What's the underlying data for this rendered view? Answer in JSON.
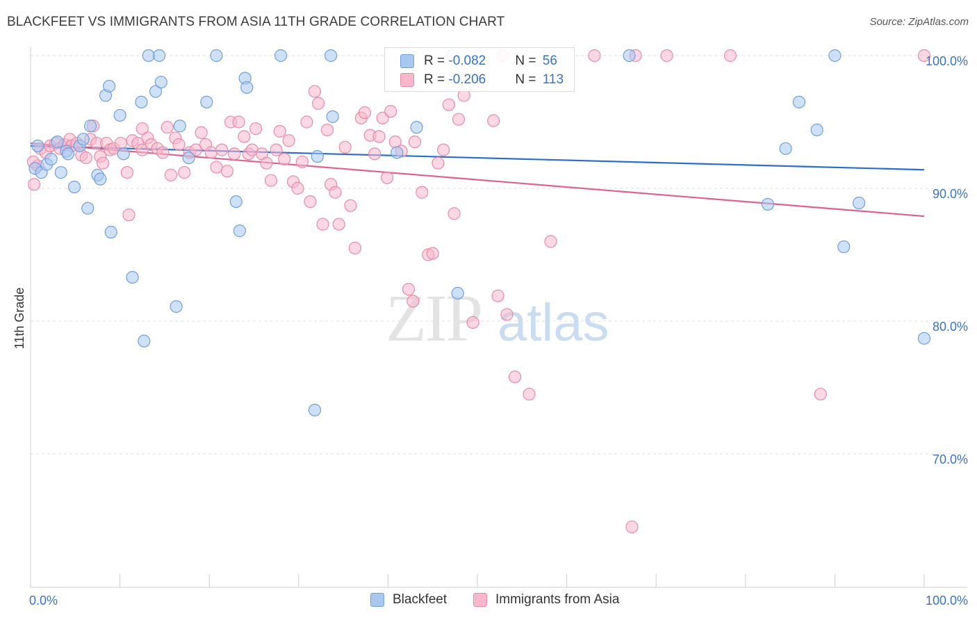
{
  "header": {
    "title": "BLACKFEET VS IMMIGRANTS FROM ASIA 11TH GRADE CORRELATION CHART",
    "source": "Source: ZipAtlas.com"
  },
  "watermark": {
    "zip": "ZIP",
    "atlas": "atlas"
  },
  "legend": {
    "blackfeet": {
      "r_label": "R = ",
      "r_value": "-0.082",
      "n_label": "N = ",
      "n_value": "56"
    },
    "asia": {
      "r_label": "R = ",
      "r_value": "-0.206",
      "n_label": "N = ",
      "n_value": "113"
    }
  },
  "colors": {
    "blackfeet_fill": "#a8c8f0",
    "blackfeet_stroke": "#6f9fdc",
    "blackfeet_line": "#2a6fcc",
    "asia_fill": "#f7b8cc",
    "asia_stroke": "#e88aa8",
    "asia_line": "#e0608e",
    "axis_label": "#3a72c8",
    "grid": "#dddddd"
  },
  "chart_data": {
    "type": "scatter",
    "title": "BLACKFEET VS IMMIGRANTS FROM ASIA 11TH GRADE CORRELATION CHART",
    "ylabel": "11th Grade",
    "xlabel": "",
    "xlim": [
      0,
      100
    ],
    "ylim": [
      62,
      100.5
    ],
    "x_tick_labels": [
      "0.0%",
      "100.0%"
    ],
    "y_tick_labels": [
      "100.0%",
      "90.0%",
      "80.0%",
      "70.0%"
    ],
    "y_tick_values": [
      100,
      90,
      80,
      70
    ],
    "grid": "horizontal-dashed",
    "series": [
      {
        "name": "Blackfeet",
        "trend": [
          [
            0,
            93.2
          ],
          [
            100,
            91.4
          ]
        ],
        "points": [
          [
            0.5,
            91.5
          ],
          [
            0.8,
            93.2
          ],
          [
            1.2,
            91.2
          ],
          [
            1.8,
            91.8
          ],
          [
            2.3,
            92.2
          ],
          [
            3.0,
            93.5
          ],
          [
            3.4,
            91.2
          ],
          [
            4.0,
            92.8
          ],
          [
            4.2,
            92.6
          ],
          [
            4.9,
            90.1
          ],
          [
            5.5,
            93.2
          ],
          [
            5.9,
            93.7
          ],
          [
            6.4,
            88.5
          ],
          [
            6.7,
            94.7
          ],
          [
            7.5,
            91.0
          ],
          [
            7.8,
            90.7
          ],
          [
            8.4,
            97.0
          ],
          [
            8.8,
            97.7
          ],
          [
            9.0,
            86.7
          ],
          [
            10.0,
            95.5
          ],
          [
            10.4,
            92.6
          ],
          [
            11.4,
            83.3
          ],
          [
            12.4,
            96.5
          ],
          [
            12.7,
            78.5
          ],
          [
            13.2,
            100.0
          ],
          [
            14.0,
            97.3
          ],
          [
            14.4,
            100.0
          ],
          [
            14.6,
            98.0
          ],
          [
            16.3,
            81.1
          ],
          [
            16.7,
            94.7
          ],
          [
            17.7,
            92.3
          ],
          [
            19.7,
            96.5
          ],
          [
            20.8,
            100.0
          ],
          [
            23.0,
            89.0
          ],
          [
            23.4,
            86.8
          ],
          [
            24.0,
            98.3
          ],
          [
            24.2,
            97.6
          ],
          [
            28.0,
            100.0
          ],
          [
            31.8,
            73.3
          ],
          [
            32.1,
            92.4
          ],
          [
            33.6,
            100.0
          ],
          [
            33.8,
            95.4
          ],
          [
            41.0,
            92.7
          ],
          [
            43.2,
            94.6
          ],
          [
            47.2,
            100.0
          ],
          [
            47.8,
            82.1
          ],
          [
            50.0,
            100.0
          ],
          [
            82.5,
            88.8
          ],
          [
            84.5,
            93.0
          ],
          [
            86.0,
            96.5
          ],
          [
            88.0,
            94.4
          ],
          [
            90.0,
            100.0
          ],
          [
            91.0,
            85.6
          ],
          [
            92.7,
            88.9
          ],
          [
            100.0,
            78.7
          ],
          [
            67.0,
            100.0
          ]
        ]
      },
      {
        "name": "Immigrants from Asia",
        "trend": [
          [
            0,
            93.4
          ],
          [
            100,
            87.9
          ]
        ],
        "points": [
          [
            0.4,
            90.3
          ],
          [
            0.8,
            91.7
          ],
          [
            1.1,
            93.0
          ],
          [
            1.7,
            92.7
          ],
          [
            2.2,
            93.2
          ],
          [
            2.8,
            93.4
          ],
          [
            3.3,
            93.0
          ],
          [
            3.8,
            93.3
          ],
          [
            4.4,
            93.7
          ],
          [
            4.6,
            93.2
          ],
          [
            5.2,
            93.4
          ],
          [
            5.7,
            92.5
          ],
          [
            6.2,
            92.3
          ],
          [
            6.7,
            93.7
          ],
          [
            7.0,
            94.7
          ],
          [
            7.4,
            93.4
          ],
          [
            7.8,
            92.4
          ],
          [
            8.1,
            91.9
          ],
          [
            8.5,
            93.4
          ],
          [
            8.9,
            92.9
          ],
          [
            9.3,
            93.0
          ],
          [
            10.1,
            93.4
          ],
          [
            10.8,
            91.2
          ],
          [
            11.0,
            88.0
          ],
          [
            11.4,
            93.6
          ],
          [
            12.0,
            93.4
          ],
          [
            12.5,
            92.9
          ],
          [
            13.1,
            93.8
          ],
          [
            13.5,
            93.3
          ],
          [
            14.2,
            93.0
          ],
          [
            14.8,
            92.7
          ],
          [
            15.3,
            94.6
          ],
          [
            15.7,
            91.0
          ],
          [
            16.2,
            93.8
          ],
          [
            16.6,
            93.3
          ],
          [
            17.2,
            91.2
          ],
          [
            17.8,
            92.7
          ],
          [
            18.5,
            92.9
          ],
          [
            19.1,
            94.2
          ],
          [
            19.6,
            93.3
          ],
          [
            20.2,
            92.7
          ],
          [
            20.8,
            91.6
          ],
          [
            21.4,
            92.9
          ],
          [
            22.0,
            91.3
          ],
          [
            22.4,
            95.0
          ],
          [
            22.8,
            92.6
          ],
          [
            23.3,
            95.0
          ],
          [
            23.9,
            93.9
          ],
          [
            24.4,
            92.6
          ],
          [
            24.8,
            92.9
          ],
          [
            25.2,
            94.5
          ],
          [
            25.9,
            92.6
          ],
          [
            26.4,
            91.9
          ],
          [
            26.9,
            90.6
          ],
          [
            27.5,
            92.9
          ],
          [
            27.9,
            94.3
          ],
          [
            28.4,
            92.2
          ],
          [
            28.9,
            93.6
          ],
          [
            29.4,
            90.5
          ],
          [
            29.9,
            90.0
          ],
          [
            30.4,
            92.0
          ],
          [
            30.9,
            95.0
          ],
          [
            31.3,
            89.0
          ],
          [
            31.8,
            97.3
          ],
          [
            32.2,
            96.4
          ],
          [
            32.7,
            87.3
          ],
          [
            33.2,
            94.4
          ],
          [
            33.6,
            90.3
          ],
          [
            34.1,
            89.7
          ],
          [
            34.5,
            87.3
          ],
          [
            35.2,
            93.1
          ],
          [
            35.8,
            88.7
          ],
          [
            36.3,
            85.5
          ],
          [
            37.0,
            95.3
          ],
          [
            37.4,
            95.7
          ],
          [
            38.0,
            94.0
          ],
          [
            38.5,
            92.6
          ],
          [
            39.0,
            93.9
          ],
          [
            39.4,
            95.3
          ],
          [
            39.9,
            90.8
          ],
          [
            40.3,
            95.8
          ],
          [
            40.8,
            93.5
          ],
          [
            41.5,
            92.8
          ],
          [
            42.3,
            82.4
          ],
          [
            42.8,
            81.5
          ],
          [
            43.0,
            93.5
          ],
          [
            43.8,
            89.7
          ],
          [
            44.5,
            85.0
          ],
          [
            45.0,
            85.1
          ],
          [
            45.6,
            91.9
          ],
          [
            46.2,
            92.9
          ],
          [
            46.8,
            96.3
          ],
          [
            47.4,
            88.1
          ],
          [
            47.9,
            95.2
          ],
          [
            48.5,
            97.0
          ],
          [
            49.5,
            79.9
          ],
          [
            50.5,
            98.0
          ],
          [
            51.8,
            95.1
          ],
          [
            52.3,
            81.9
          ],
          [
            52.8,
            100.0
          ],
          [
            53.3,
            80.5
          ],
          [
            54.2,
            75.8
          ],
          [
            55.8,
            74.5
          ],
          [
            58.2,
            86.0
          ],
          [
            63.1,
            100.0
          ],
          [
            67.3,
            64.5
          ],
          [
            67.7,
            100.0
          ],
          [
            71.2,
            100.0
          ],
          [
            78.3,
            100.0
          ],
          [
            88.4,
            74.5
          ],
          [
            100.0,
            100.0
          ],
          [
            0.3,
            92.0
          ],
          [
            12.5,
            94.5
          ]
        ]
      }
    ]
  },
  "bottom_legend": {
    "blackfeet": "Blackfeet",
    "asia": "Immigrants from Asia"
  }
}
